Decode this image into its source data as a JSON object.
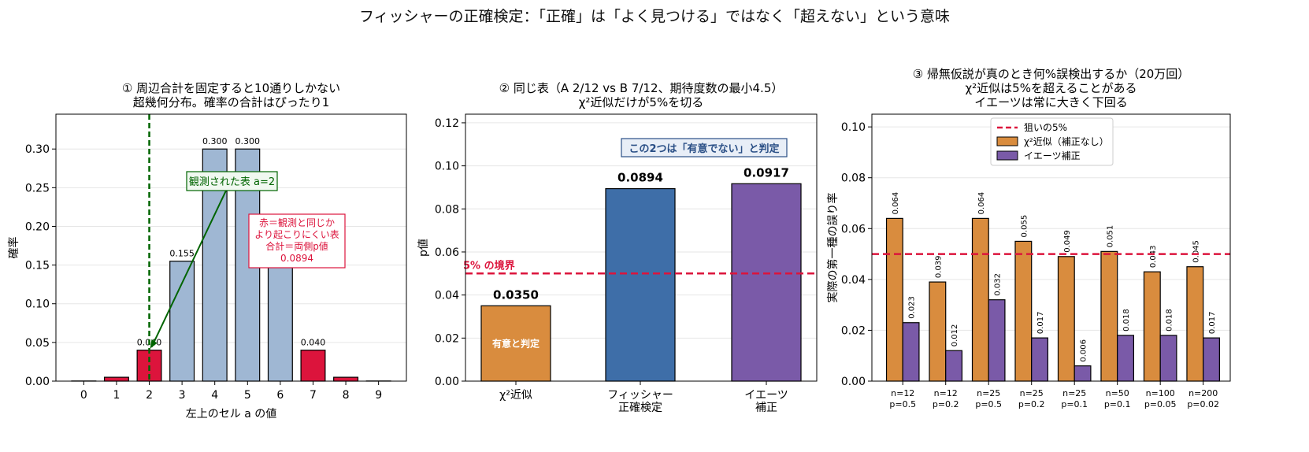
{
  "suptitle": "フィッシャーの正確検定：「正確」は「よく見つける」ではなく「超えない」という意味",
  "colors": {
    "light_bar": "#9fb7d3",
    "red": "#dc143c",
    "green": "#006400",
    "orange": "#d98c3e",
    "blue": "#3e6ea8",
    "purple": "#7a5aa8",
    "grid": "#e6e6e6",
    "dark_blue_text": "#2a4f86"
  },
  "chart_data": [
    {
      "type": "bar",
      "title_lines": [
        "① 周辺合計を固定すると10通りしかない",
        "超幾何分布。確率の合計はぴったり1"
      ],
      "xlabel": "左上のセル a の値",
      "ylabel": "確率",
      "ylim": [
        0,
        0.345
      ],
      "yticks": [
        "0.00",
        "0.05",
        "0.10",
        "0.15",
        "0.20",
        "0.25",
        "0.30"
      ],
      "grid": true,
      "categories": [
        "0",
        "1",
        "2",
        "3",
        "4",
        "5",
        "6",
        "7",
        "8",
        "9"
      ],
      "values": [
        0.0002,
        0.005,
        0.04,
        0.155,
        0.3,
        0.3,
        0.155,
        0.04,
        0.005,
        0.0002
      ],
      "highlight": [
        true,
        true,
        true,
        false,
        false,
        false,
        false,
        true,
        true,
        true
      ],
      "value_labels": [
        "",
        "",
        "0.040",
        "0.155",
        "0.300",
        "0.300",
        "",
        "0.040",
        "",
        ""
      ],
      "observed_index": 2,
      "annotations": {
        "observed": "観測された表 a=2",
        "red_note": [
          "赤＝観測と同じか",
          "より起こりにくい表",
          "合計＝両側p値",
          "0.0894"
        ]
      }
    },
    {
      "type": "bar",
      "title_lines": [
        "② 同じ表（A 2/12 vs B 7/12、期待度数の最小4.5）",
        "χ²近似だけが5%を切る"
      ],
      "xlabel": "",
      "ylabel": "p値",
      "ylim": [
        0,
        0.124
      ],
      "yticks": [
        "0.00",
        "0.02",
        "0.04",
        "0.06",
        "0.08",
        "0.10",
        "0.12"
      ],
      "grid": true,
      "categories": [
        [
          "χ²近似"
        ],
        [
          "フィッシャー",
          "正確検定"
        ],
        [
          "イエーツ",
          "補正"
        ]
      ],
      "values": [
        0.035,
        0.0894,
        0.0917
      ],
      "value_labels": [
        "0.0350",
        "0.0894",
        "0.0917"
      ],
      "threshold": 0.05,
      "threshold_label": "5% の境界",
      "inside_label": "有意と判定",
      "box_note": "この2つは「有意でない」と判定"
    },
    {
      "type": "bar",
      "title_lines": [
        "③ 帰無仮説が真のとき何%誤検出するか（20万回）",
        "χ²近似は5%を超えることがある",
        "イエーツは常に大きく下回る"
      ],
      "xlabel": "",
      "ylabel": "実際の第一種の誤り率",
      "ylim": [
        0,
        0.105
      ],
      "yticks": [
        "0.00",
        "0.02",
        "0.04",
        "0.06",
        "0.08",
        "0.10"
      ],
      "grid": true,
      "categories": [
        [
          "n=12",
          "p=0.5"
        ],
        [
          "n=12",
          "p=0.2"
        ],
        [
          "n=25",
          "p=0.5"
        ],
        [
          "n=25",
          "p=0.2"
        ],
        [
          "n=25",
          "p=0.1"
        ],
        [
          "n=50",
          "p=0.1"
        ],
        [
          "n=100",
          "p=0.05"
        ],
        [
          "n=200",
          "p=0.02"
        ]
      ],
      "series": [
        {
          "name": "χ²近似（補正なし）",
          "values": [
            0.064,
            0.039,
            0.064,
            0.055,
            0.049,
            0.051,
            0.043,
            0.045
          ],
          "labels": [
            "0.064",
            "0.039",
            "0.064",
            "0.055",
            "0.049",
            "0.051",
            "0.043",
            "0.045"
          ]
        },
        {
          "name": "イエーツ補正",
          "values": [
            0.023,
            0.012,
            0.032,
            0.017,
            0.006,
            0.018,
            0.018,
            0.017
          ],
          "labels": [
            "0.023",
            "0.012",
            "0.032",
            "0.017",
            "0.006",
            "0.018",
            "0.018",
            "0.017"
          ]
        }
      ],
      "threshold": 0.05,
      "threshold_name": "狙いの5%",
      "legend_position": "upper-center"
    }
  ]
}
